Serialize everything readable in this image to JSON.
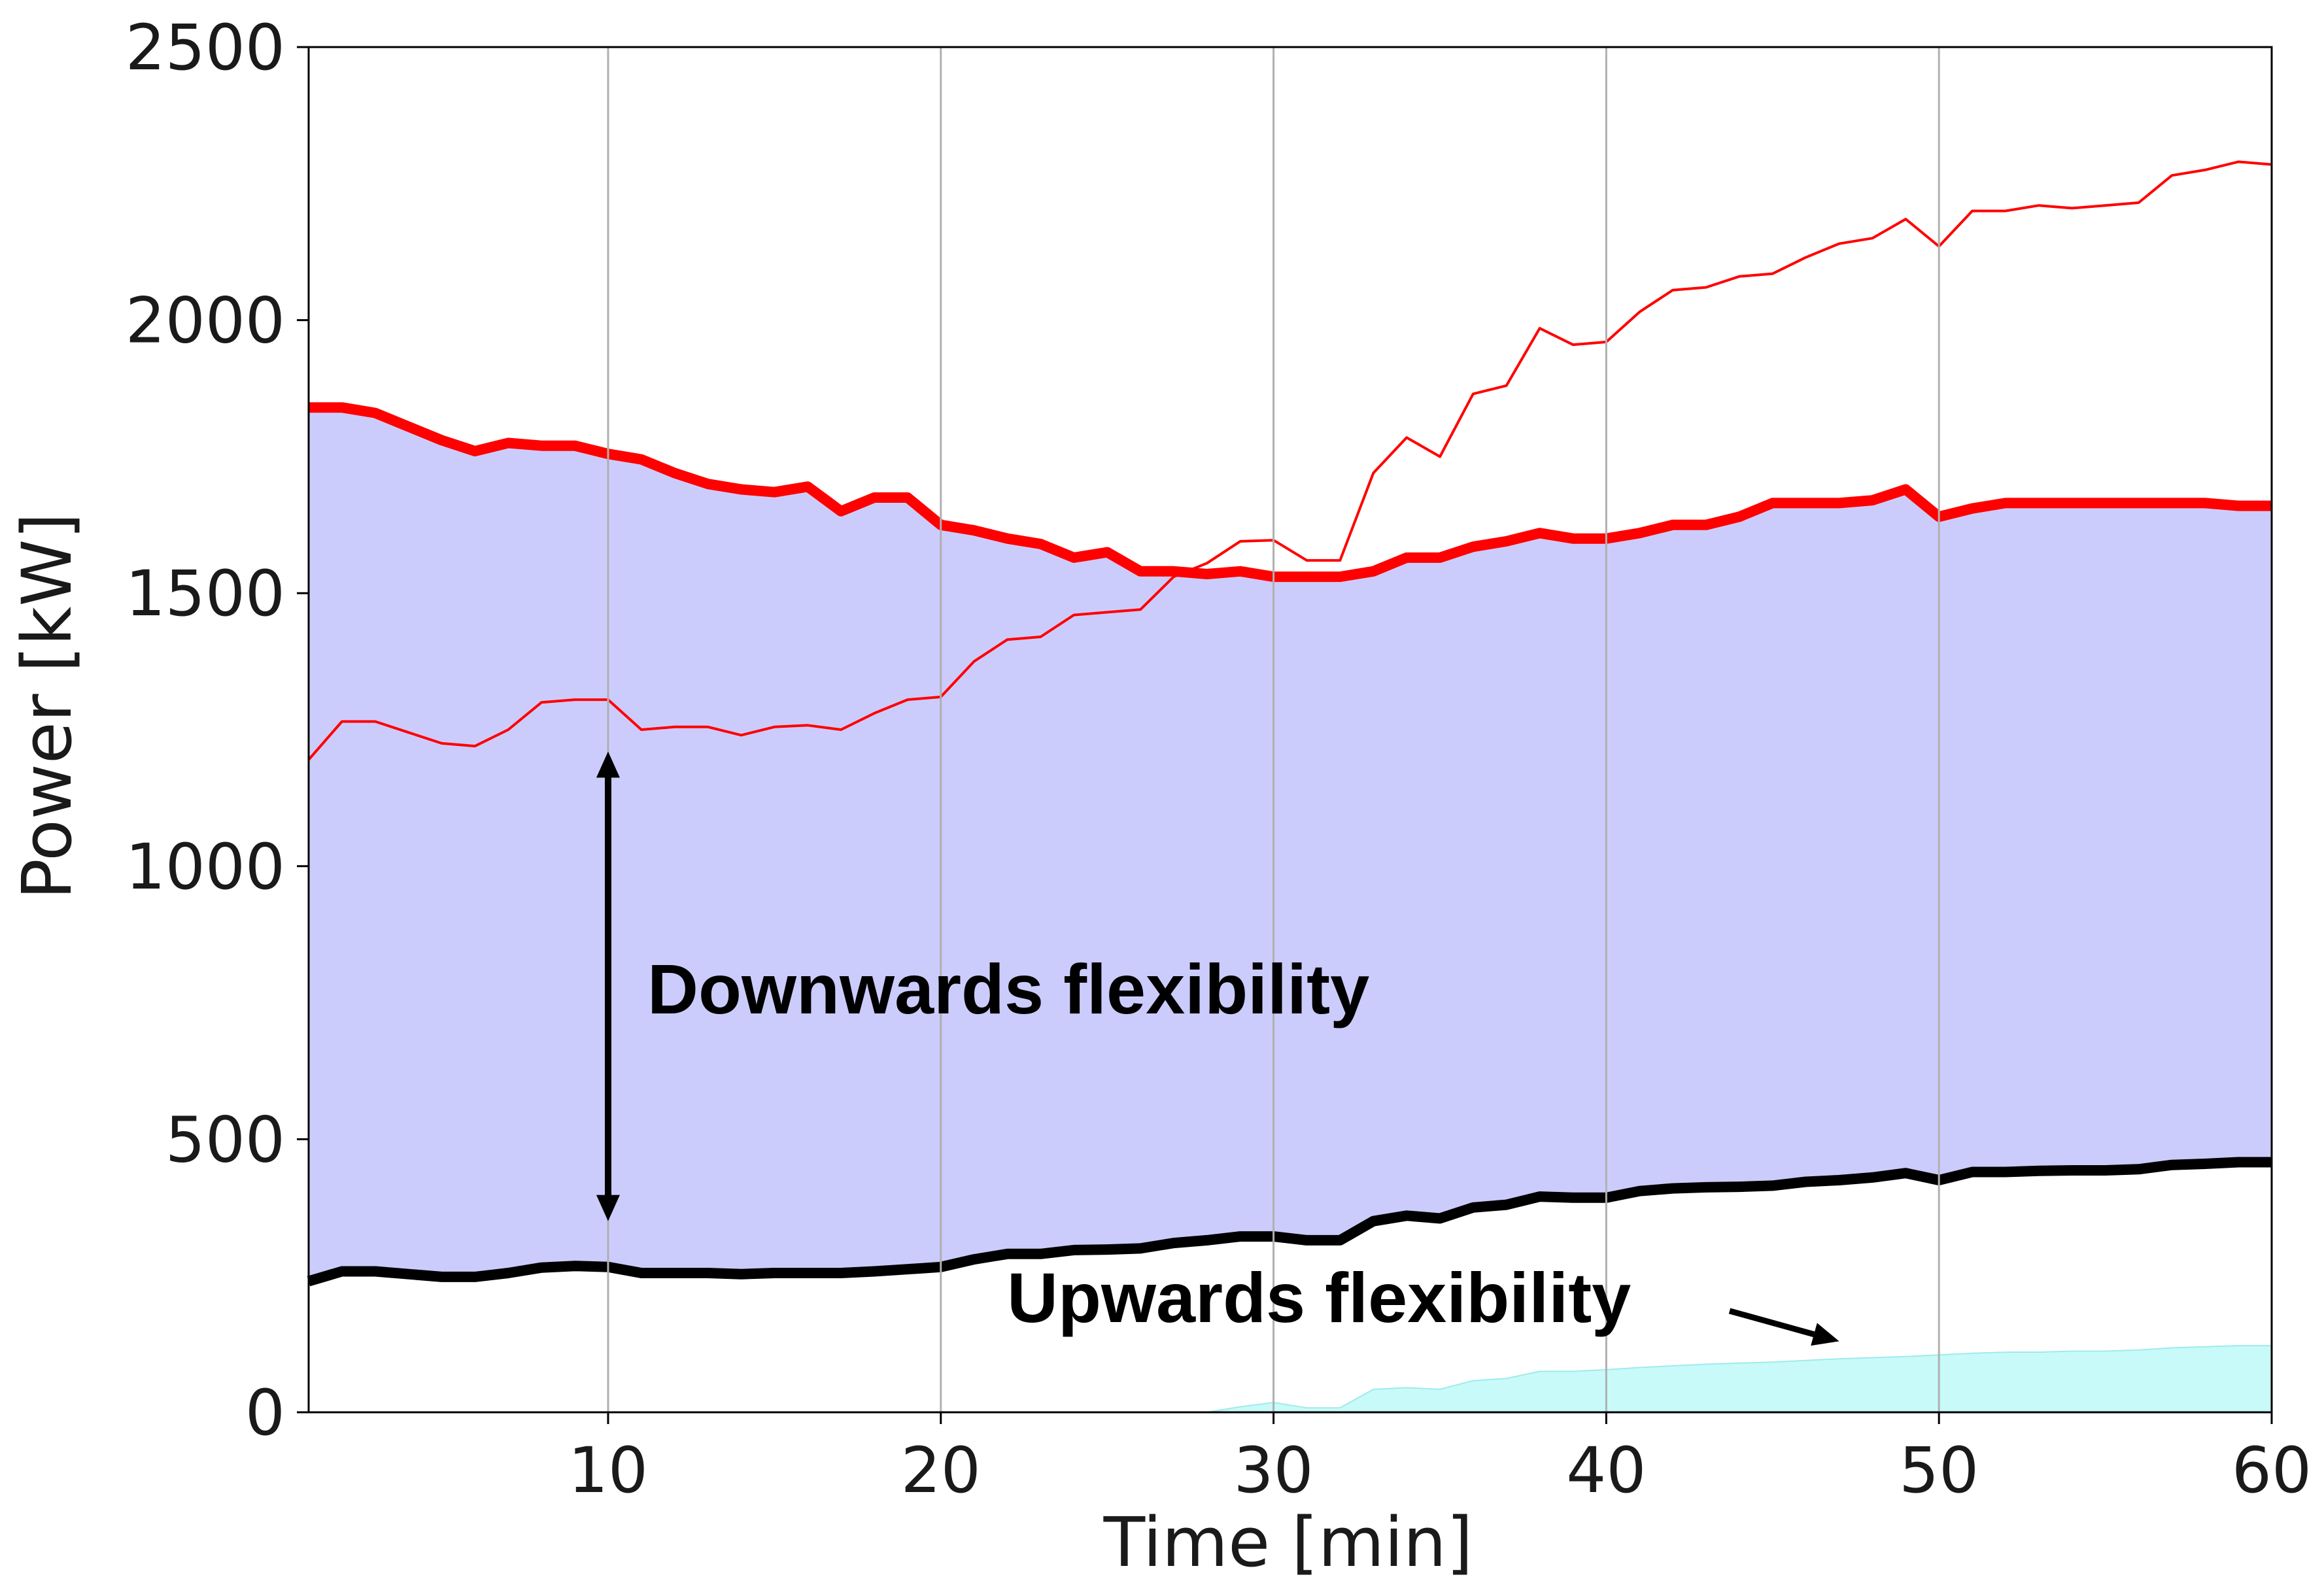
{
  "chart_data": {
    "type": "area",
    "title": "",
    "xlabel": "Time [min]",
    "ylabel": "Power [kW]",
    "xlim": [
      1,
      60
    ],
    "ylim": [
      0,
      2500
    ],
    "xticks": [
      10,
      20,
      30,
      40,
      50,
      60
    ],
    "yticks": [
      0,
      500,
      1000,
      1500,
      2000,
      2500
    ],
    "grid": "vertical",
    "x": [
      1,
      2,
      3,
      4,
      5,
      6,
      7,
      8,
      9,
      10,
      11,
      12,
      13,
      14,
      15,
      16,
      17,
      18,
      19,
      20,
      21,
      22,
      23,
      24,
      25,
      26,
      27,
      28,
      29,
      30,
      31,
      32,
      33,
      34,
      35,
      36,
      37,
      38,
      39,
      40,
      41,
      42,
      43,
      44,
      45,
      46,
      47,
      48,
      49,
      50,
      51,
      52,
      53,
      54,
      55,
      56,
      57,
      58,
      59,
      60
    ],
    "series": [
      {
        "role": "thick-red-line",
        "color": "#ff0000",
        "values": [
          1840,
          1840,
          1830,
          1805,
          1780,
          1760,
          1775,
          1770,
          1770,
          1755,
          1745,
          1720,
          1700,
          1690,
          1685,
          1695,
          1650,
          1675,
          1675,
          1625,
          1615,
          1600,
          1590,
          1565,
          1575,
          1540,
          1540,
          1535,
          1540,
          1530,
          1530,
          1530,
          1540,
          1565,
          1565,
          1585,
          1595,
          1610,
          1600,
          1600,
          1610,
          1625,
          1625,
          1640,
          1665,
          1665,
          1665,
          1670,
          1690,
          1640,
          1655,
          1665,
          1665,
          1665,
          1665,
          1665,
          1665,
          1665,
          1660,
          1660
        ]
      },
      {
        "role": "thin-red-line",
        "color": "#ff0000",
        "values": [
          1195,
          1265,
          1265,
          1245,
          1225,
          1220,
          1250,
          1300,
          1305,
          1305,
          1250,
          1255,
          1255,
          1240,
          1255,
          1258,
          1250,
          1280,
          1305,
          1310,
          1375,
          1415,
          1420,
          1460,
          1465,
          1470,
          1530,
          1555,
          1595,
          1597,
          1560,
          1560,
          1720,
          1785,
          1750,
          1865,
          1880,
          1985,
          1955,
          1960,
          2015,
          2055,
          2060,
          2080,
          2085,
          2115,
          2140,
          2150,
          2185,
          2135,
          2200,
          2200,
          2210,
          2205,
          2210,
          2215,
          2265,
          2275,
          2290,
          2285
        ]
      },
      {
        "role": "thick-black-line",
        "color": "#000000",
        "values": [
          240,
          258,
          258,
          253,
          248,
          248,
          255,
          265,
          268,
          266,
          255,
          255,
          255,
          253,
          255,
          255,
          255,
          258,
          262,
          266,
          280,
          290,
          290,
          297,
          298,
          300,
          310,
          315,
          322,
          322,
          315,
          315,
          350,
          360,
          355,
          375,
          380,
          395,
          393,
          393,
          405,
          410,
          412,
          413,
          415,
          422,
          425,
          430,
          438,
          425,
          440,
          440,
          442,
          443,
          443,
          445,
          453,
          455,
          458,
          458
        ]
      },
      {
        "role": "cyan-area",
        "color": "#c8fafa",
        "values": [
          0,
          0,
          0,
          0,
          0,
          0,
          0,
          0,
          0,
          0,
          0,
          0,
          0,
          0,
          0,
          0,
          0,
          0,
          0,
          0,
          0,
          0,
          0,
          0,
          0,
          0,
          0,
          0,
          10,
          18,
          8,
          8,
          42,
          45,
          42,
          58,
          62,
          75,
          75,
          78,
          82,
          85,
          88,
          90,
          92,
          95,
          98,
          100,
          102,
          105,
          108,
          110,
          110,
          112,
          112,
          114,
          118,
          120,
          122,
          122
        ]
      }
    ],
    "fill_between": {
      "lower": "thick-black-line",
      "upper": "thick-red-line",
      "color": "#ccccfc"
    },
    "annotations": [
      {
        "text": "Downwards flexibility",
        "arrow": "double",
        "arrow_x": 10,
        "arrow_y": [
          350,
          1210
        ]
      },
      {
        "text": "Upwards flexibility",
        "arrow": "single",
        "arrow_to": [
          47,
          130
        ]
      }
    ]
  }
}
